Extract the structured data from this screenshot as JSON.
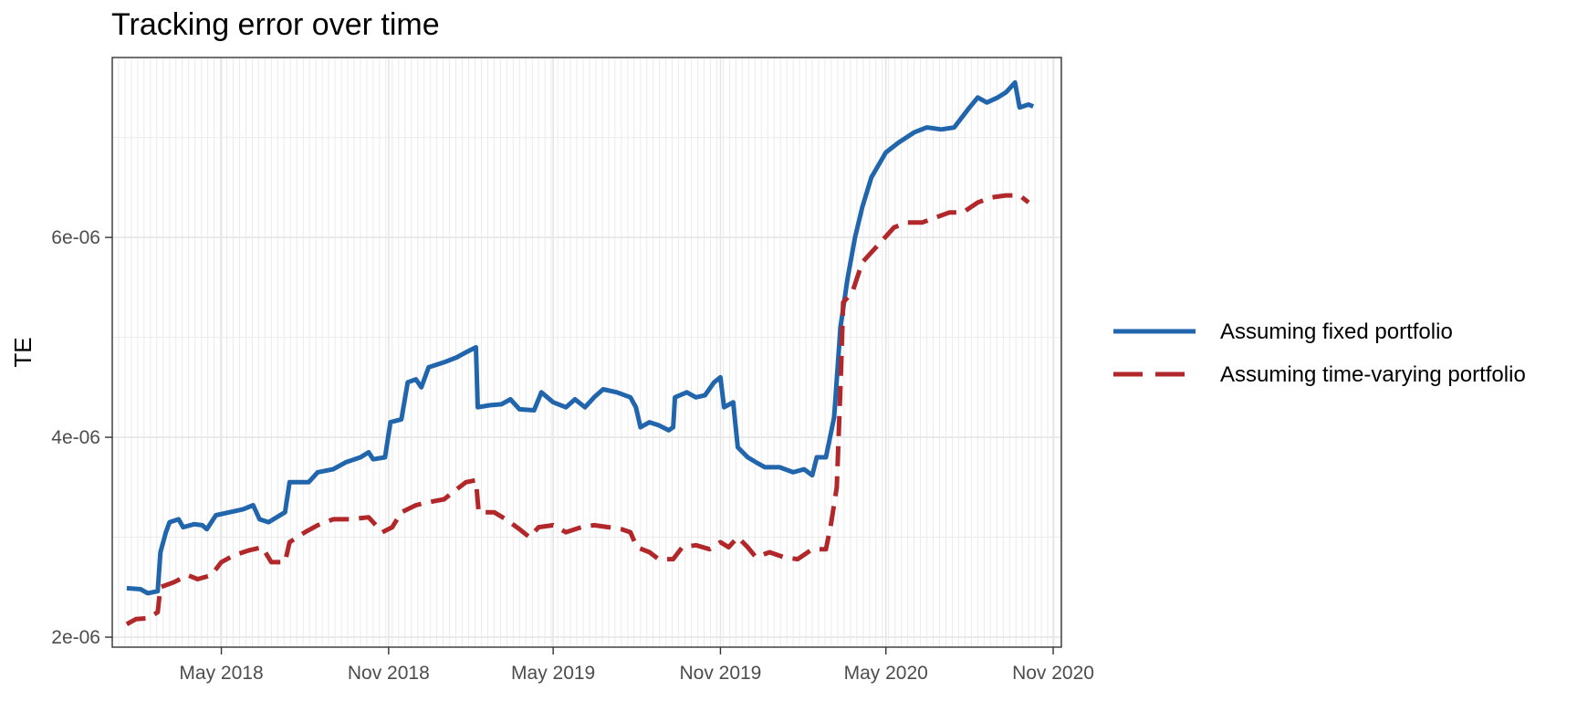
{
  "chart_data": {
    "type": "line",
    "title": "Tracking error over time",
    "xlabel": "",
    "ylabel": "TE",
    "x_axis": {
      "type": "date",
      "range": [
        "2018-01-01",
        "2020-11-10"
      ],
      "tick_dates": [
        "2018-05-01",
        "2018-11-01",
        "2019-05-01",
        "2019-11-01",
        "2020-05-01",
        "2020-11-01"
      ],
      "tick_labels": [
        "May 2018",
        "Nov 2018",
        "May 2019",
        "Nov 2019",
        "May 2020",
        "Nov 2020"
      ]
    },
    "y_axis": {
      "range": [
        1.9e-06,
        7.8e-06
      ],
      "ticks": [
        2e-06,
        4e-06,
        6e-06
      ],
      "tick_labels": [
        "2e-06",
        "4e-06",
        "6e-06"
      ]
    },
    "grid": true,
    "legend_position": "right",
    "series": [
      {
        "name": "Assuming fixed portfolio",
        "color": "#2166ac",
        "line_style": "solid",
        "points": [
          [
            "2018-01-17",
            2.49e-06
          ],
          [
            "2018-02-01",
            2.48e-06
          ],
          [
            "2018-02-09",
            2.44e-06
          ],
          [
            "2018-02-20",
            2.46e-06
          ],
          [
            "2018-02-23",
            2.85e-06
          ],
          [
            "2018-03-01",
            3.05e-06
          ],
          [
            "2018-03-05",
            3.15e-06
          ],
          [
            "2018-03-15",
            3.18e-06
          ],
          [
            "2018-03-20",
            3.1e-06
          ],
          [
            "2018-04-01",
            3.13e-06
          ],
          [
            "2018-04-10",
            3.12e-06
          ],
          [
            "2018-04-15",
            3.08e-06
          ],
          [
            "2018-04-25",
            3.22e-06
          ],
          [
            "2018-05-10",
            3.25e-06
          ],
          [
            "2018-05-25",
            3.28e-06
          ],
          [
            "2018-06-05",
            3.32e-06
          ],
          [
            "2018-06-12",
            3.18e-06
          ],
          [
            "2018-06-22",
            3.15e-06
          ],
          [
            "2018-07-10",
            3.25e-06
          ],
          [
            "2018-07-15",
            3.55e-06
          ],
          [
            "2018-07-25",
            3.55e-06
          ],
          [
            "2018-08-05",
            3.55e-06
          ],
          [
            "2018-08-15",
            3.65e-06
          ],
          [
            "2018-09-01",
            3.68e-06
          ],
          [
            "2018-09-15",
            3.75e-06
          ],
          [
            "2018-10-01",
            3.8e-06
          ],
          [
            "2018-10-10",
            3.85e-06
          ],
          [
            "2018-10-15",
            3.78e-06
          ],
          [
            "2018-10-28",
            3.8e-06
          ],
          [
            "2018-11-03",
            4.15e-06
          ],
          [
            "2018-11-15",
            4.18e-06
          ],
          [
            "2018-11-22",
            4.55e-06
          ],
          [
            "2018-12-01",
            4.58e-06
          ],
          [
            "2018-12-07",
            4.5e-06
          ],
          [
            "2018-12-15",
            4.7e-06
          ],
          [
            "2019-01-01",
            4.75e-06
          ],
          [
            "2019-01-15",
            4.8e-06
          ],
          [
            "2019-01-25",
            4.85e-06
          ],
          [
            "2019-02-05",
            4.9e-06
          ],
          [
            "2019-02-07",
            4.3e-06
          ],
          [
            "2019-02-20",
            4.32e-06
          ],
          [
            "2019-03-05",
            4.33e-06
          ],
          [
            "2019-03-15",
            4.38e-06
          ],
          [
            "2019-03-25",
            4.28e-06
          ],
          [
            "2019-04-10",
            4.27e-06
          ],
          [
            "2019-04-18",
            4.45e-06
          ],
          [
            "2019-05-01",
            4.35e-06
          ],
          [
            "2019-05-15",
            4.3e-06
          ],
          [
            "2019-05-25",
            4.38e-06
          ],
          [
            "2019-06-05",
            4.3e-06
          ],
          [
            "2019-06-15",
            4.4e-06
          ],
          [
            "2019-06-25",
            4.48e-06
          ],
          [
            "2019-07-10",
            4.45e-06
          ],
          [
            "2019-07-25",
            4.4e-06
          ],
          [
            "2019-07-31",
            4.3e-06
          ],
          [
            "2019-08-05",
            4.1e-06
          ],
          [
            "2019-08-15",
            4.15e-06
          ],
          [
            "2019-08-25",
            4.12e-06
          ],
          [
            "2019-09-05",
            4.07e-06
          ],
          [
            "2019-09-10",
            4.1e-06
          ],
          [
            "2019-09-12",
            4.4e-06
          ],
          [
            "2019-09-25",
            4.45e-06
          ],
          [
            "2019-10-05",
            4.4e-06
          ],
          [
            "2019-10-15",
            4.42e-06
          ],
          [
            "2019-10-25",
            4.55e-06
          ],
          [
            "2019-11-01",
            4.6e-06
          ],
          [
            "2019-11-05",
            4.3e-06
          ],
          [
            "2019-11-15",
            4.35e-06
          ],
          [
            "2019-11-20",
            3.9e-06
          ],
          [
            "2019-12-01",
            3.8e-06
          ],
          [
            "2019-12-10",
            3.75e-06
          ],
          [
            "2019-12-20",
            3.7e-06
          ],
          [
            "2020-01-05",
            3.7e-06
          ],
          [
            "2020-01-20",
            3.65e-06
          ],
          [
            "2020-02-01",
            3.68e-06
          ],
          [
            "2020-02-10",
            3.62e-06
          ],
          [
            "2020-02-15",
            3.8e-06
          ],
          [
            "2020-02-25",
            3.8e-06
          ],
          [
            "2020-03-05",
            4.2e-06
          ],
          [
            "2020-03-12",
            5.1e-06
          ],
          [
            "2020-03-20",
            5.6e-06
          ],
          [
            "2020-03-28",
            6e-06
          ],
          [
            "2020-04-05",
            6.3e-06
          ],
          [
            "2020-04-15",
            6.6e-06
          ],
          [
            "2020-05-01",
            6.85e-06
          ],
          [
            "2020-05-15",
            6.95e-06
          ],
          [
            "2020-06-01",
            7.05e-06
          ],
          [
            "2020-06-15",
            7.1e-06
          ],
          [
            "2020-07-01",
            7.08e-06
          ],
          [
            "2020-07-15",
            7.1e-06
          ],
          [
            "2020-08-01",
            7.3e-06
          ],
          [
            "2020-08-10",
            7.4e-06
          ],
          [
            "2020-08-20",
            7.35e-06
          ],
          [
            "2020-09-01",
            7.4e-06
          ],
          [
            "2020-09-10",
            7.45e-06
          ],
          [
            "2020-09-20",
            7.55e-06
          ],
          [
            "2020-09-25",
            7.3e-06
          ],
          [
            "2020-10-05",
            7.33e-06
          ],
          [
            "2020-10-10",
            7.31e-06
          ]
        ]
      },
      {
        "name": "Assuming time-varying portfolio",
        "color": "#b2282a",
        "line_style": "dashed",
        "points": [
          [
            "2018-01-17",
            2.13e-06
          ],
          [
            "2018-01-27",
            2.18e-06
          ],
          [
            "2018-02-10",
            2.19e-06
          ],
          [
            "2018-02-20",
            2.25e-06
          ],
          [
            "2018-02-23",
            2.5e-06
          ],
          [
            "2018-03-10",
            2.55e-06
          ],
          [
            "2018-03-25",
            2.62e-06
          ],
          [
            "2018-04-05",
            2.58e-06
          ],
          [
            "2018-04-20",
            2.62e-06
          ],
          [
            "2018-05-01",
            2.75e-06
          ],
          [
            "2018-05-15",
            2.82e-06
          ],
          [
            "2018-06-01",
            2.87e-06
          ],
          [
            "2018-06-15",
            2.9e-06
          ],
          [
            "2018-06-25",
            2.75e-06
          ],
          [
            "2018-07-10",
            2.75e-06
          ],
          [
            "2018-07-15",
            2.95e-06
          ],
          [
            "2018-08-01",
            3.05e-06
          ],
          [
            "2018-08-15",
            3.12e-06
          ],
          [
            "2018-09-01",
            3.18e-06
          ],
          [
            "2018-09-20",
            3.18e-06
          ],
          [
            "2018-10-10",
            3.2e-06
          ],
          [
            "2018-10-25",
            3.05e-06
          ],
          [
            "2018-11-05",
            3.1e-06
          ],
          [
            "2018-11-15",
            3.25e-06
          ],
          [
            "2018-12-01",
            3.32e-06
          ],
          [
            "2018-12-15",
            3.35e-06
          ],
          [
            "2019-01-01",
            3.38e-06
          ],
          [
            "2019-01-15",
            3.48e-06
          ],
          [
            "2019-01-25",
            3.55e-06
          ],
          [
            "2019-02-05",
            3.57e-06
          ],
          [
            "2019-02-08",
            3.25e-06
          ],
          [
            "2019-02-25",
            3.25e-06
          ],
          [
            "2019-03-10",
            3.18e-06
          ],
          [
            "2019-03-25",
            3.08e-06
          ],
          [
            "2019-04-05",
            3e-06
          ],
          [
            "2019-04-15",
            3.1e-06
          ],
          [
            "2019-05-01",
            3.12e-06
          ],
          [
            "2019-05-15",
            3.05e-06
          ],
          [
            "2019-06-01",
            3.1e-06
          ],
          [
            "2019-06-15",
            3.12e-06
          ],
          [
            "2019-07-01",
            3.1e-06
          ],
          [
            "2019-07-15",
            3.08e-06
          ],
          [
            "2019-07-25",
            3.05e-06
          ],
          [
            "2019-08-01",
            2.9e-06
          ],
          [
            "2019-08-15",
            2.85e-06
          ],
          [
            "2019-08-25",
            2.78e-06
          ],
          [
            "2019-09-10",
            2.78e-06
          ],
          [
            "2019-09-20",
            2.9e-06
          ],
          [
            "2019-10-05",
            2.92e-06
          ],
          [
            "2019-10-20",
            2.88e-06
          ],
          [
            "2019-11-01",
            2.95e-06
          ],
          [
            "2019-11-10",
            2.9e-06
          ],
          [
            "2019-11-20",
            3e-06
          ],
          [
            "2019-12-01",
            2.9e-06
          ],
          [
            "2019-12-10",
            2.8e-06
          ],
          [
            "2019-12-25",
            2.85e-06
          ],
          [
            "2020-01-10",
            2.8e-06
          ],
          [
            "2020-01-25",
            2.78e-06
          ],
          [
            "2020-02-10",
            2.88e-06
          ],
          [
            "2020-02-25",
            2.88e-06
          ],
          [
            "2020-03-01",
            3.1e-06
          ],
          [
            "2020-03-08",
            3.5e-06
          ],
          [
            "2020-03-12",
            4.5e-06
          ],
          [
            "2020-03-15",
            5.35e-06
          ],
          [
            "2020-03-25",
            5.45e-06
          ],
          [
            "2020-04-05",
            5.75e-06
          ],
          [
            "2020-04-15",
            5.85e-06
          ],
          [
            "2020-04-25",
            5.95e-06
          ],
          [
            "2020-05-10",
            6.1e-06
          ],
          [
            "2020-05-25",
            6.15e-06
          ],
          [
            "2020-06-10",
            6.15e-06
          ],
          [
            "2020-06-25",
            6.2e-06
          ],
          [
            "2020-07-10",
            6.25e-06
          ],
          [
            "2020-07-25",
            6.25e-06
          ],
          [
            "2020-08-10",
            6.35e-06
          ],
          [
            "2020-08-25",
            6.4e-06
          ],
          [
            "2020-09-10",
            6.42e-06
          ],
          [
            "2020-09-25",
            6.42e-06
          ],
          [
            "2020-10-05",
            6.35e-06
          ]
        ]
      }
    ]
  }
}
